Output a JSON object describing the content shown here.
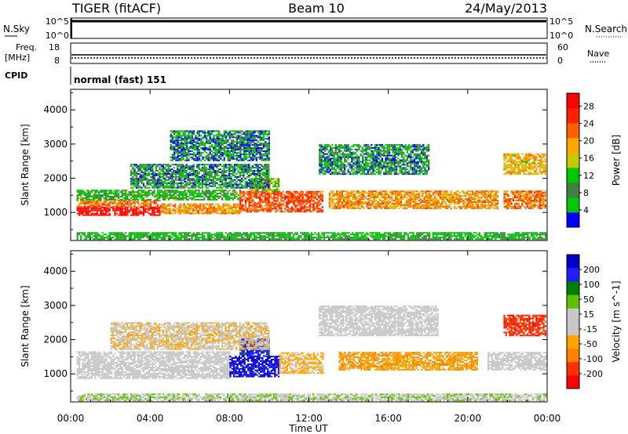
{
  "header": {
    "radar": "TIGER (fitACF)",
    "beam": "Beam 10",
    "date": "24/May/2013"
  },
  "top_panels": {
    "nsky_label": "N.Sky",
    "nsearch_label": "N.Search",
    "noise_ticks": [
      "10^5",
      "10^0"
    ],
    "freq_label_1": "Freq.",
    "freq_label_2": "[MHz]",
    "freq_ticks": [
      "18",
      "8"
    ],
    "nave_label": "Nave",
    "nave_ticks": [
      "60",
      "0"
    ],
    "cpid_label": "CPID",
    "cpid_value": "normal (fast) 151"
  },
  "colors": {
    "power": [
      "#0000ff",
      "#00c800",
      "#408040",
      "#00c800",
      "#c8c800",
      "#ffa500",
      "#ff6000",
      "#ff2000",
      "#ff0000"
    ],
    "velocity": [
      "#ff0000",
      "#ff3000",
      "#ff7f00",
      "#ffa500",
      "#c8c8c8",
      "#c8c8c8",
      "#60c000",
      "#008000",
      "#2020ff",
      "#0000c8"
    ]
  },
  "chart_data": [
    {
      "type": "heatmap",
      "name": "power",
      "xlabel": "Time UT",
      "ylabel": "Slant Range [km]",
      "xlim": [
        0,
        24
      ],
      "ylim": [
        180,
        4600
      ],
      "xticks": [
        "00:00",
        "04:00",
        "08:00",
        "12:00",
        "16:00",
        "20:00",
        "00:00"
      ],
      "yticks": [
        1000,
        2000,
        3000,
        4000
      ],
      "colorbar": {
        "label": "Power [dB]",
        "ticks": [
          4,
          8,
          12,
          16,
          20,
          24,
          28
        ],
        "range": [
          0,
          31
        ]
      },
      "echo_regions": [
        {
          "t0": 0.3,
          "t1": 4.5,
          "r0": 900,
          "r1": 1150,
          "value": 29
        },
        {
          "t0": 0.3,
          "t1": 4.5,
          "r0": 1150,
          "r1": 1350,
          "value": 22
        },
        {
          "t0": 0.3,
          "t1": 8.5,
          "r0": 1350,
          "r1": 1650,
          "value": 10
        },
        {
          "t0": 4.5,
          "t1": 8.5,
          "r0": 950,
          "r1": 1250,
          "value": 20
        },
        {
          "t0": 8.5,
          "t1": 12.7,
          "r0": 1000,
          "r1": 1600,
          "value": 24
        },
        {
          "t0": 9.0,
          "t1": 10.5,
          "r0": 1600,
          "r1": 2000,
          "value": 14
        },
        {
          "t0": 13.0,
          "t1": 21.5,
          "r0": 1100,
          "r1": 1600,
          "value": 20
        },
        {
          "t0": 12.5,
          "t1": 18.0,
          "r0": 2100,
          "r1": 3000,
          "value": 6
        },
        {
          "t0": 21.8,
          "t1": 23.9,
          "r0": 2100,
          "r1": 2700,
          "value": 18
        },
        {
          "t0": 21.8,
          "t1": 23.9,
          "r0": 1100,
          "r1": 1600,
          "value": 22
        },
        {
          "t0": 3.0,
          "t1": 10.0,
          "r0": 1700,
          "r1": 2400,
          "value": 6
        },
        {
          "t0": 5.0,
          "t1": 10.0,
          "r0": 2500,
          "r1": 3400,
          "value": 5
        },
        {
          "t0": 0.3,
          "t1": 23.9,
          "r0": 200,
          "r1": 420,
          "value": 8
        }
      ]
    },
    {
      "type": "heatmap",
      "name": "velocity",
      "xlabel": "Time UT",
      "ylabel": "Slant Range [km]",
      "xlim": [
        0,
        24
      ],
      "ylim": [
        180,
        4600
      ],
      "xticks": [
        "00:00",
        "04:00",
        "08:00",
        "12:00",
        "16:00",
        "20:00",
        "00:00"
      ],
      "yticks": [
        1000,
        2000,
        3000,
        4000
      ],
      "colorbar": {
        "label": "Velocity [m s^-1]",
        "ticks": [
          200,
          100,
          50,
          15,
          -15,
          -50,
          -100,
          -200
        ],
        "range": [
          -250,
          250
        ]
      },
      "echo_regions": [
        {
          "t0": 0.3,
          "t1": 8.0,
          "r0": 850,
          "r1": 1650,
          "value": 0
        },
        {
          "t0": 8.0,
          "t1": 10.5,
          "r0": 900,
          "r1": 1500,
          "value": 220
        },
        {
          "t0": 8.5,
          "t1": 10.0,
          "r0": 1500,
          "r1": 2000,
          "value": 180
        },
        {
          "t0": 10.5,
          "t1": 12.7,
          "r0": 1000,
          "r1": 1600,
          "value": -60
        },
        {
          "t0": 13.5,
          "t1": 20.5,
          "r0": 1100,
          "r1": 1600,
          "value": -90
        },
        {
          "t0": 12.5,
          "t1": 18.5,
          "r0": 2100,
          "r1": 3000,
          "value": 0
        },
        {
          "t0": 21.8,
          "t1": 23.9,
          "r0": 2100,
          "r1": 2700,
          "value": -180
        },
        {
          "t0": 21.0,
          "t1": 23.9,
          "r0": 1100,
          "r1": 1600,
          "value": 0
        },
        {
          "t0": 2.0,
          "t1": 10.0,
          "r0": 1700,
          "r1": 2500,
          "value": -40
        },
        {
          "t0": 0.3,
          "t1": 23.9,
          "r0": 200,
          "r1": 420,
          "value": 40
        }
      ]
    }
  ]
}
